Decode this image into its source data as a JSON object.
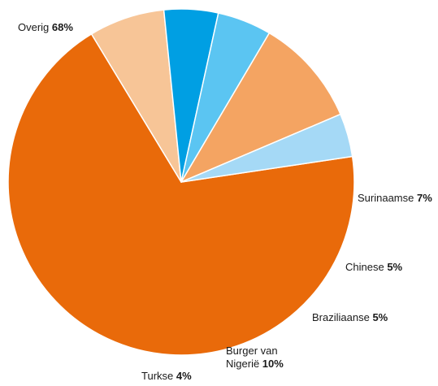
{
  "chart_data": {
    "type": "pie",
    "title": "",
    "slices": [
      {
        "name": "Overig",
        "value": 68,
        "value_label": "68%",
        "color": "#e96a0a"
      },
      {
        "name": "Surinaamse",
        "value": 7,
        "value_label": "7%",
        "color": "#f7c597"
      },
      {
        "name": "Chinese",
        "value": 5,
        "value_label": "5%",
        "color": "#009fe3"
      },
      {
        "name": "Braziliaanse",
        "value": 5,
        "value_label": "5%",
        "color": "#5bc5f2"
      },
      {
        "name": "Burger van Nigerië",
        "value": 10,
        "value_label": "10%",
        "color": "#f4a462",
        "name_lines": [
          "Burger van",
          "Nigerië"
        ]
      },
      {
        "name": "Turkse",
        "value": 4,
        "value_label": "4%",
        "color": "#a5d9f6"
      }
    ]
  }
}
